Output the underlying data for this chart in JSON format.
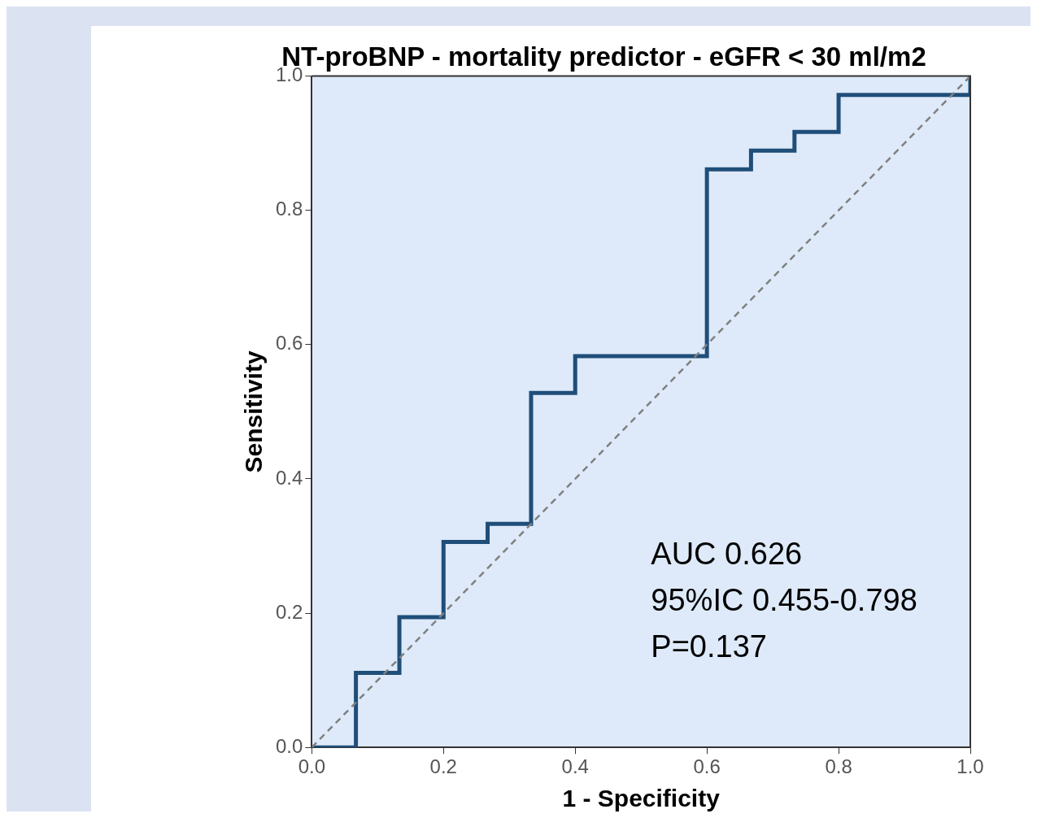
{
  "chart_data": {
    "type": "step",
    "title": "NT-proBNP - mortality predictor - eGFR < 30 ml/m2",
    "xlabel": "1 - Specificity",
    "ylabel": "Sensitivity",
    "series": [
      {
        "color": "#1f4e79",
        "x": [
          0,
          0.067,
          0.133,
          0.2,
          0.267,
          0.333,
          0.4,
          0.6,
          0.667,
          0.733,
          0.8,
          1.0
        ],
        "values": [
          0,
          0.111,
          0.194,
          0.306,
          0.333,
          0.528,
          0.583,
          0.861,
          0.889,
          0.917,
          0.972,
          1.0
        ]
      },
      {
        "type": "line",
        "color": "#808080",
        "line_style": "dashed",
        "x": [
          0,
          1
        ],
        "values": [
          0,
          1
        ]
      }
    ],
    "xlim": [
      0,
      1
    ],
    "ylim": [
      0,
      1
    ],
    "xticks": [
      {
        "value": 0,
        "label": "0.0"
      },
      {
        "value": 0.2,
        "label": "0.2"
      },
      {
        "value": 0.4,
        "label": "0.4"
      },
      {
        "value": 0.6,
        "label": "0.6"
      },
      {
        "value": 0.8,
        "label": "0.8"
      },
      {
        "value": 1,
        "label": "1.0"
      }
    ],
    "yticks": [
      {
        "value": 0,
        "label": "0.0"
      },
      {
        "value": 0.2,
        "label": "0.2"
      },
      {
        "value": 0.4,
        "label": "0.4"
      },
      {
        "value": 0.6,
        "label": "0.6"
      },
      {
        "value": 0.8,
        "label": "0.8"
      },
      {
        "value": 1,
        "label": "1.0"
      }
    ],
    "grid": false,
    "legend": false,
    "marker": "none",
    "annotations": [
      "AUC 0.626",
      "95%IC 0.455-0.798",
      "P=0.137"
    ]
  }
}
